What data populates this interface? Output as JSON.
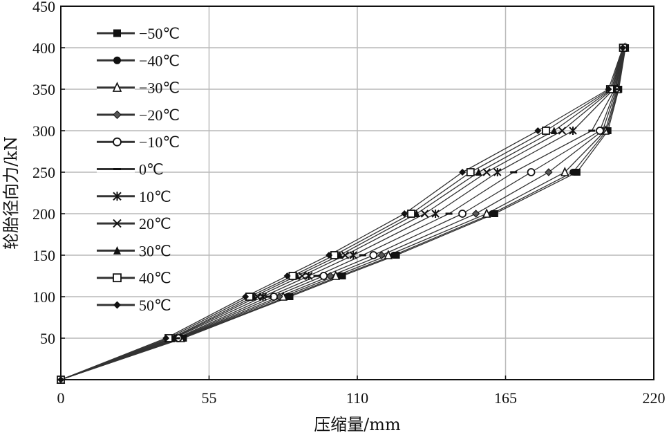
{
  "chart_data": {
    "type": "line",
    "title": "",
    "xlabel": "压缩量/mm",
    "ylabel": "轮胎径向力/kN",
    "xlim": [
      0,
      220
    ],
    "ylim": [
      0,
      450
    ],
    "xticks": [
      0,
      55,
      110,
      165,
      220
    ],
    "yticks": [
      50,
      100,
      150,
      200,
      250,
      300,
      350,
      400,
      450
    ],
    "x_tick_labels": [
      "0",
      "55",
      "110",
      "165",
      "220"
    ],
    "y_tick_labels": [
      "50",
      "100",
      "150",
      "200",
      "250",
      "300",
      "350",
      "400",
      "450"
    ],
    "grid": true,
    "legend_position": "top-left",
    "y_levels": [
      0,
      50,
      100,
      125,
      150,
      200,
      250,
      300,
      350,
      400
    ],
    "series": [
      {
        "name": "−50℃",
        "marker": "square",
        "x": [
          0,
          45.5,
          85,
          104.5,
          124.5,
          161,
          191.5,
          203,
          207,
          209.5
        ]
      },
      {
        "name": "−40℃",
        "marker": "circle",
        "x": [
          0,
          45,
          84,
          103.5,
          123.5,
          160,
          190,
          202.5,
          206.8,
          209.4
        ]
      },
      {
        "name": "−30℃",
        "marker": "triangle",
        "x": [
          0,
          44.5,
          82.5,
          102,
          121.5,
          158,
          187,
          202,
          206.5,
          209.3
        ]
      },
      {
        "name": "−20℃",
        "marker": "diamond",
        "x": [
          0,
          44,
          81,
          100,
          119,
          154,
          181,
          201,
          206.2,
          209.2
        ]
      },
      {
        "name": "−10℃",
        "marker": "circle-open",
        "x": [
          0,
          43.5,
          79,
          97.5,
          116,
          149,
          174.5,
          200,
          205.8,
          209.1
        ]
      },
      {
        "name": "0℃",
        "marker": "dash",
        "x": [
          0,
          43,
          77,
          95,
          112,
          144,
          168,
          197,
          205.5,
          209
        ]
      },
      {
        "name": "10℃",
        "marker": "star",
        "x": [
          0,
          42,
          75,
          92,
          108.5,
          139,
          162,
          190,
          205.1,
          208.9
        ]
      },
      {
        "name": "20℃",
        "marker": "x",
        "x": [
          0,
          41.5,
          73,
          89.5,
          105.5,
          135,
          158,
          186,
          204.7,
          208.8
        ]
      },
      {
        "name": "30℃",
        "marker": "triangle-filled",
        "x": [
          0,
          41,
          71.5,
          87.5,
          103.5,
          132,
          155,
          183,
          204.3,
          208.7
        ]
      },
      {
        "name": "40℃",
        "marker": "square-open",
        "x": [
          0,
          40,
          70,
          86,
          101.5,
          130,
          152,
          180,
          203.8,
          208.6
        ]
      },
      {
        "name": "50℃",
        "marker": "diamond-filled",
        "x": [
          0,
          39,
          68.5,
          84,
          99.5,
          127.5,
          149,
          177,
          203.2,
          208.5
        ]
      }
    ]
  }
}
